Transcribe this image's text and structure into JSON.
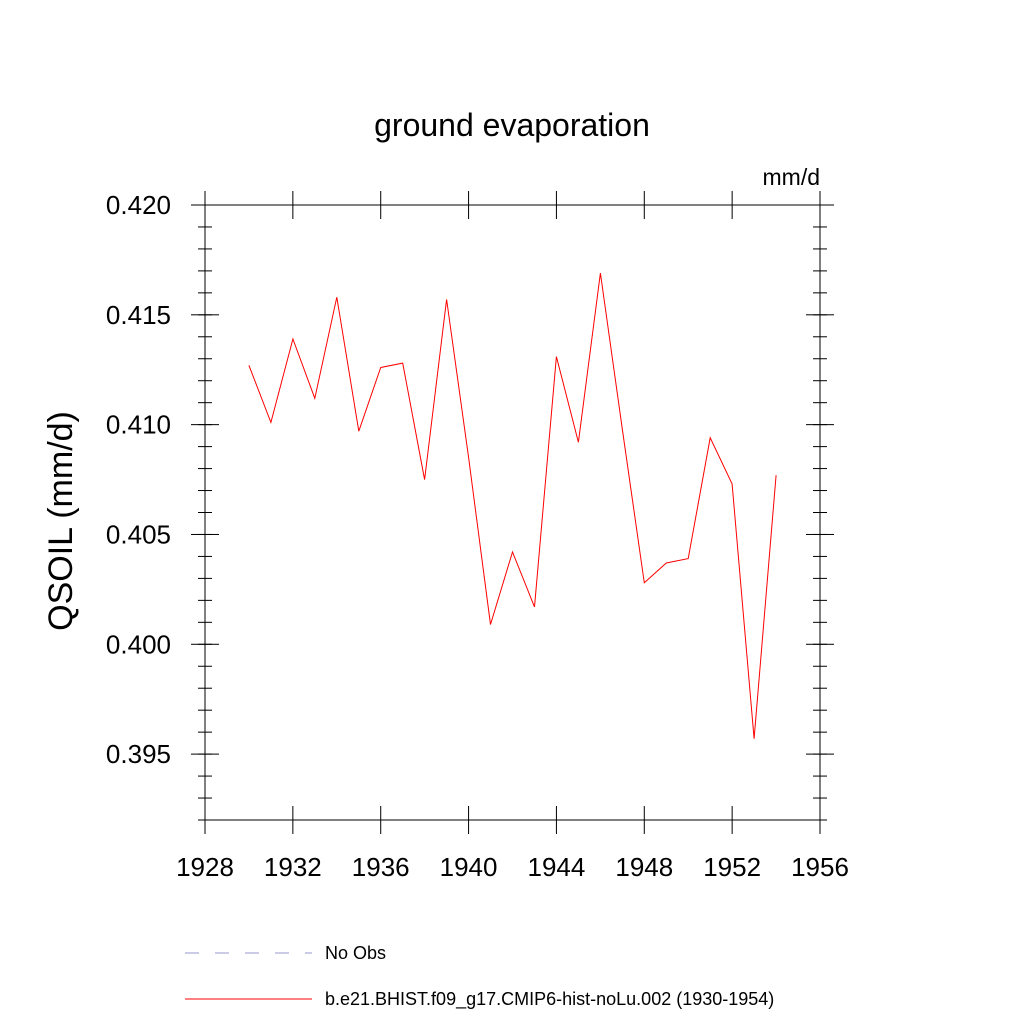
{
  "chart_data": {
    "type": "line",
    "title": "ground evaporation",
    "units": "mm/d",
    "ylabel": "QSOIL  (mm/d)",
    "xlabel": "",
    "xlim": [
      1928,
      1956
    ],
    "ylim": [
      0.392,
      0.42
    ],
    "xticks": [
      "1928",
      "1932",
      "1936",
      "1940",
      "1944",
      "1948",
      "1952",
      "1956"
    ],
    "yticks": [
      "0.395",
      "0.400",
      "0.405",
      "0.410",
      "0.415",
      "0.420"
    ],
    "grid": false,
    "series": [
      {
        "name": "b.e21.BHIST.f09_g17.CMIP6-hist-noLu.002 (1930-1954)",
        "color": "#ff0000",
        "x": [
          1930,
          1931,
          1932,
          1933,
          1934,
          1935,
          1936,
          1937,
          1938,
          1939,
          1940,
          1941,
          1942,
          1943,
          1944,
          1945,
          1946,
          1947,
          1948,
          1949,
          1950,
          1951,
          1952,
          1953,
          1954
        ],
        "y": [
          0.4127,
          0.4101,
          0.4139,
          0.4112,
          0.4158,
          0.4097,
          0.4126,
          0.4128,
          0.4075,
          0.4157,
          0.4085,
          0.4009,
          0.4042,
          0.4017,
          0.4131,
          0.4092,
          0.4169,
          0.4098,
          0.4028,
          0.4037,
          0.4039,
          0.4094,
          0.4073,
          0.3957,
          0.4077
        ]
      }
    ],
    "legend": {
      "placement": "bottom",
      "entries": [
        {
          "label": "No Obs",
          "color": "#9999cc",
          "style": "dashed"
        },
        {
          "label": "b.e21.BHIST.f09_g17.CMIP6-hist-noLu.002 (1930-1954)",
          "color": "#ff0000",
          "style": "solid"
        }
      ]
    }
  }
}
